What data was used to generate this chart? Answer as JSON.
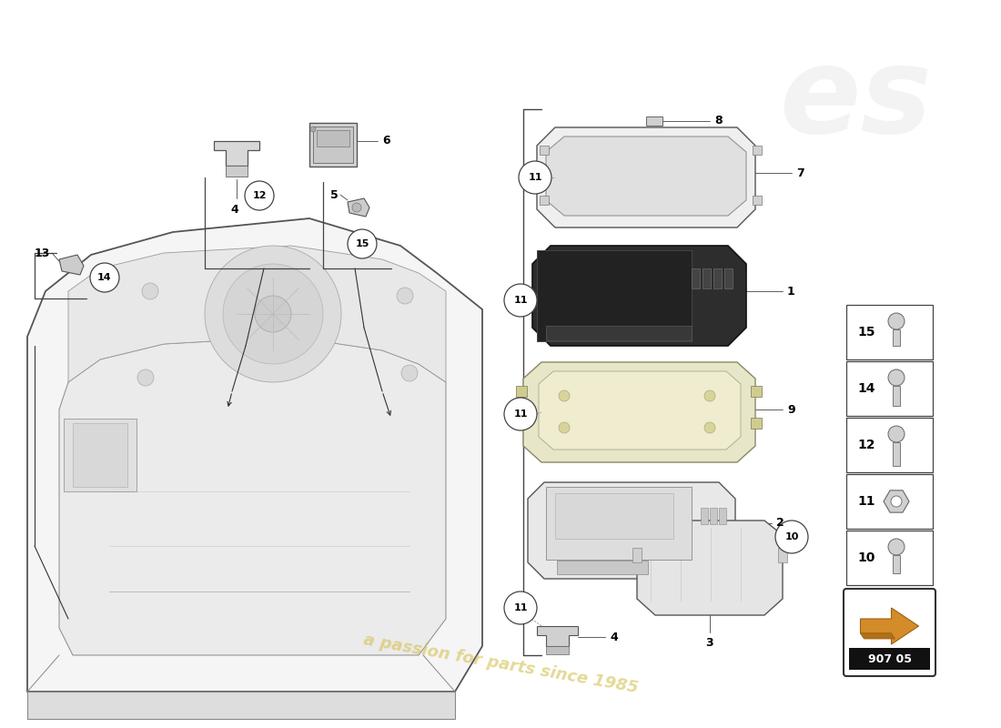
{
  "bg_color": "#ffffff",
  "part_number": "907 05",
  "watermark_text": "a passion for parts since 1985",
  "watermark_logo": "es",
  "hardware_items": [
    {
      "num": "15",
      "type": "bolt_pan"
    },
    {
      "num": "14",
      "type": "bolt_pan"
    },
    {
      "num": "12",
      "type": "bolt_hex_long"
    },
    {
      "num": "11",
      "type": "nut_flange"
    },
    {
      "num": "10",
      "type": "bolt_hex_short"
    }
  ],
  "line_color": "#444444",
  "part_line_color": "#333333"
}
